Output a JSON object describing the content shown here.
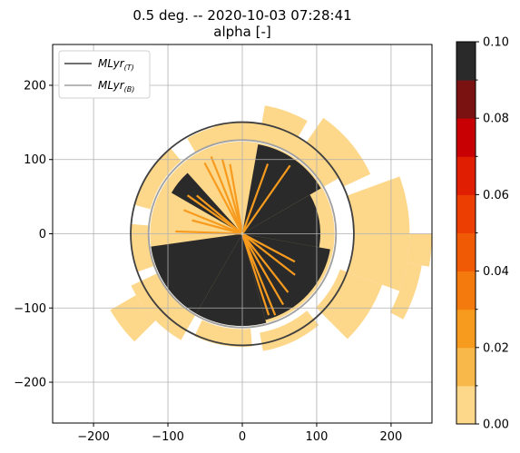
{
  "chart_data": {
    "type": "heatmap",
    "title": "0.5 deg. -- 2020-10-03 07:28:41",
    "subtitle": "alpha [-]",
    "xlim": [
      -255,
      255
    ],
    "ylim": [
      -255,
      255
    ],
    "xticks": [
      -200,
      -100,
      0,
      100,
      200
    ],
    "yticks": [
      200,
      100,
      0,
      -100,
      -200
    ],
    "xtick_labels": [
      "−200",
      "−100",
      "0",
      "100",
      "200"
    ],
    "ytick_labels": [
      "200",
      "100",
      "0",
      "−100",
      "−200"
    ],
    "grid": true,
    "legend_position": "top-left",
    "legend": [
      {
        "label": "MLyr",
        "sub": "(T)",
        "color": "#404040"
      },
      {
        "label": "MLyr",
        "sub": "(B)",
        "color": "#a0a0a0"
      }
    ],
    "melting_layer_rings": [
      {
        "name": "MLyr(T)",
        "radius": 150
      },
      {
        "name": "MLyr(B)",
        "radius": 126
      }
    ],
    "colorbar": {
      "range": [
        0.0,
        0.1
      ],
      "ticks": [
        0.0,
        0.02,
        0.04,
        0.06,
        0.08,
        0.1
      ],
      "tick_labels": [
        "0.00",
        "0.02",
        "0.04",
        "0.06",
        "0.08",
        "0.10"
      ],
      "colors": [
        "#fdd78a",
        "#f9b84a",
        "#f79b1e",
        "#f47a0e",
        "#f15a05",
        "#ec3d02",
        "#e01e02",
        "#c80004",
        "#7a1212",
        "#2a2a2a"
      ]
    },
    "colors": {
      "low": "#fdd78a",
      "high": "#2a2a2a",
      "streak": "#f79b1e",
      "grid": "#b0b0b0"
    }
  }
}
